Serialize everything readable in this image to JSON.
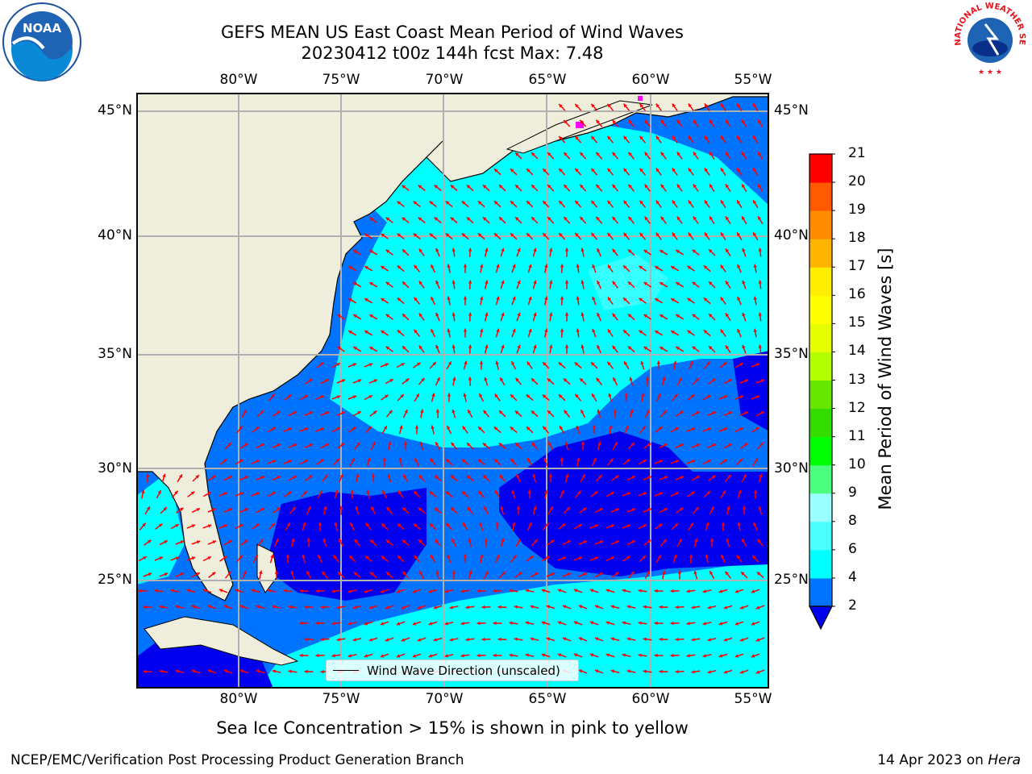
{
  "title": {
    "line1": "GEFS MEAN US East Coast Mean Period of Wind Waves",
    "line2": "20230412 t00z 144h fcst   Max: 7.48"
  },
  "map": {
    "lon_labels": [
      "80°W",
      "75°W",
      "70°W",
      "65°W",
      "60°W",
      "55°W"
    ],
    "lat_labels": [
      "45°N",
      "40°N",
      "35°N",
      "30°N",
      "25°N"
    ],
    "legend_label": "Wind Wave Direction (unscaled)",
    "colors": {
      "land": "#efeddb",
      "grid": "#b0b0b0",
      "arrow": "#ff0000",
      "sea_ice": "#ff00ff"
    }
  },
  "colorbar": {
    "label": "Mean Period of Wind Waves [s]",
    "ticks": [
      "2",
      "4",
      "6",
      "8",
      "9",
      "10",
      "11",
      "12",
      "13",
      "14",
      "15",
      "16",
      "17",
      "18",
      "19",
      "20",
      "21"
    ],
    "colors": [
      "#0074ff",
      "#00ffff",
      "#4cffff",
      "#99ffff",
      "#4cff7f",
      "#00ff00",
      "#33dd00",
      "#66e600",
      "#b3ff00",
      "#e6ff00",
      "#ffff00",
      "#ffee00",
      "#ffb400",
      "#ff8c00",
      "#ff5a00",
      "#ff2800",
      "#ff0000"
    ],
    "under_color": "#0000ee"
  },
  "bottom_note": "Sea Ice Concentration > 15% is shown in pink to yellow",
  "footer": {
    "left": "NCEP/EMC/Verification Post Processing Product Generation Branch",
    "date": "14 Apr 2023 on ",
    "machine": "Hera"
  },
  "logos": {
    "noaa": "NOAA",
    "nws": "NATIONAL WEATHER SERVICE"
  }
}
